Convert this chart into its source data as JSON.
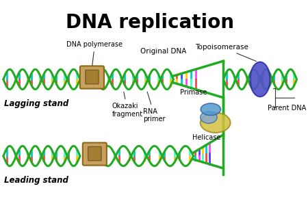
{
  "title": "DNA replication",
  "title_fontsize": 20,
  "title_fontweight": "bold",
  "background_color": "#ffffff",
  "labels": {
    "lagging_stand": "Lagging stand",
    "leading_stand": "Leading stand",
    "dna_polymerase": "DNA polymerase",
    "okazaki_fragment": "Okazaki\nfragment",
    "rna_primer": "RNA\nprimer",
    "original_dna": "Original DNA",
    "primase": "Primase",
    "helicase": "Helicase",
    "topoisomerase": "Topoisomerase",
    "parent_dna": "Parent DNA"
  },
  "colors": {
    "dna_strand1": "#22aa22",
    "dna_strand2": "#22aa22",
    "base_colors": [
      "#ff4444",
      "#4444ff",
      "#ffcc00",
      "#00cccc",
      "#ff44ff",
      "#44ffcc"
    ],
    "polymerase_body": "#c8a060",
    "polymerase_dark": "#8b6914",
    "topoisomerase": "#5555cc",
    "helicase": "#c8b840",
    "primase": "#4488cc",
    "annotation_line": "#333333",
    "text_color": "#000000",
    "lagging_text": "#000000"
  }
}
